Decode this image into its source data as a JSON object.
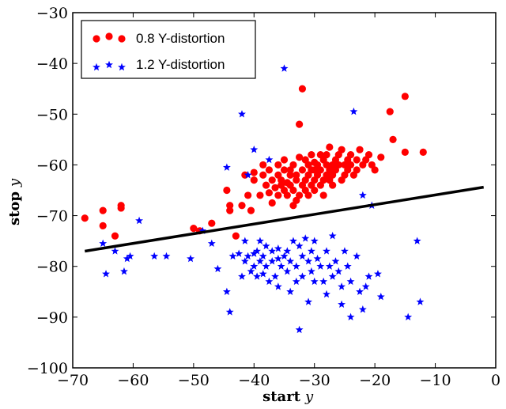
{
  "chart_data": {
    "type": "scatter",
    "xlabel": "start",
    "xlabel_var": "y",
    "ylabel": "stop",
    "ylabel_var": "y",
    "xlim": [
      -70,
      0
    ],
    "ylim": [
      -100,
      -30
    ],
    "xticks": [
      -70,
      -60,
      -50,
      -40,
      -30,
      -20,
      -10,
      0
    ],
    "yticks": [
      -100,
      -90,
      -80,
      -70,
      -60,
      -50,
      -40,
      -30
    ],
    "xtick_labels": [
      "−70",
      "−60",
      "−50",
      "−40",
      "−30",
      "−20",
      "−10",
      "0"
    ],
    "ytick_labels": [
      "−100",
      "−90",
      "−80",
      "−70",
      "−60",
      "−50",
      "−40",
      "−30"
    ],
    "grid": false,
    "legend_position": "top-left",
    "series": [
      {
        "name": "0.8 Y-distortion",
        "marker": "circle",
        "color": "#ff0000",
        "points": [
          [
            -68,
            -70.5
          ],
          [
            -65,
            -72
          ],
          [
            -65,
            -69
          ],
          [
            -63,
            -74
          ],
          [
            -62,
            -68.5
          ],
          [
            -62,
            -68
          ],
          [
            -50,
            -72.5
          ],
          [
            -49,
            -73
          ],
          [
            -47,
            -71.5
          ],
          [
            -44.5,
            -65
          ],
          [
            -44,
            -69
          ],
          [
            -44,
            -68
          ],
          [
            -43,
            -74
          ],
          [
            -42,
            -68
          ],
          [
            -41.5,
            -62
          ],
          [
            -41,
            -66
          ],
          [
            -40.5,
            -69
          ],
          [
            -40,
            -63
          ],
          [
            -40,
            -61.5
          ],
          [
            -39,
            -66
          ],
          [
            -38.5,
            -60
          ],
          [
            -38.5,
            -62
          ],
          [
            -38,
            -64
          ],
          [
            -37.5,
            -65.5
          ],
          [
            -37.5,
            -61
          ],
          [
            -37,
            -67.5
          ],
          [
            -37,
            -63
          ],
          [
            -36.5,
            -64.5
          ],
          [
            -36,
            -66
          ],
          [
            -36,
            -62
          ],
          [
            -36,
            -60
          ],
          [
            -35.5,
            -64
          ],
          [
            -35.5,
            -63
          ],
          [
            -35,
            -65
          ],
          [
            -35,
            -61
          ],
          [
            -35,
            -59
          ],
          [
            -34.5,
            -66
          ],
          [
            -34.5,
            -63.5
          ],
          [
            -34,
            -62
          ],
          [
            -34,
            -64
          ],
          [
            -34,
            -61
          ],
          [
            -33.5,
            -68
          ],
          [
            -33.5,
            -65
          ],
          [
            -33.5,
            -60
          ],
          [
            -33,
            -67
          ],
          [
            -33,
            -63
          ],
          [
            -33,
            -62
          ],
          [
            -32.5,
            -58.5
          ],
          [
            -32.5,
            -52
          ],
          [
            -32.5,
            -66
          ],
          [
            -32,
            -45
          ],
          [
            -32,
            -64
          ],
          [
            -32,
            -61
          ],
          [
            -31.5,
            -65
          ],
          [
            -31.5,
            -59
          ],
          [
            -31.5,
            -63
          ],
          [
            -31,
            -60
          ],
          [
            -31,
            -62
          ],
          [
            -31,
            -66
          ],
          [
            -30.5,
            -64
          ],
          [
            -30.5,
            -61
          ],
          [
            -30.5,
            -58
          ],
          [
            -30,
            -63
          ],
          [
            -30,
            -59.5
          ],
          [
            -30,
            -65
          ],
          [
            -30,
            -61
          ],
          [
            -29.5,
            -60
          ],
          [
            -29.5,
            -62
          ],
          [
            -29,
            -58
          ],
          [
            -29,
            -64
          ],
          [
            -29,
            -61
          ],
          [
            -28.5,
            -63
          ],
          [
            -28.5,
            -59
          ],
          [
            -28.5,
            -66
          ],
          [
            -28,
            -60
          ],
          [
            -28,
            -62
          ],
          [
            -28,
            -58
          ],
          [
            -27.5,
            -61
          ],
          [
            -27.5,
            -63
          ],
          [
            -27.5,
            -56.5
          ],
          [
            -27,
            -60
          ],
          [
            -27,
            -62
          ],
          [
            -27,
            -64
          ],
          [
            -26.5,
            -59
          ],
          [
            -26.5,
            -61
          ],
          [
            -26,
            -60
          ],
          [
            -26,
            -58
          ],
          [
            -25.5,
            -63
          ],
          [
            -25.5,
            -57
          ],
          [
            -25,
            -60
          ],
          [
            -25,
            -62
          ],
          [
            -24.5,
            -59
          ],
          [
            -24.5,
            -61
          ],
          [
            -24,
            -58
          ],
          [
            -24,
            -60
          ],
          [
            -23.5,
            -62
          ],
          [
            -23,
            -59
          ],
          [
            -23,
            -61
          ],
          [
            -22.5,
            -57
          ],
          [
            -22,
            -60
          ],
          [
            -21.5,
            -59
          ],
          [
            -21,
            -58
          ],
          [
            -20.5,
            -60
          ],
          [
            -20,
            -61
          ],
          [
            -19,
            -58.5
          ],
          [
            -17.5,
            -49.5
          ],
          [
            -17,
            -55
          ],
          [
            -15,
            -46.5
          ],
          [
            -15,
            -57.5
          ],
          [
            -12,
            -57.5
          ]
        ]
      },
      {
        "name": "1.2 Y-distortion",
        "marker": "star",
        "color": "#0000ff",
        "points": [
          [
            -65,
            -75.5
          ],
          [
            -64.5,
            -81.5
          ],
          [
            -63,
            -77
          ],
          [
            -61.5,
            -81
          ],
          [
            -61,
            -78.5
          ],
          [
            -60.5,
            -78
          ],
          [
            -59,
            -71
          ],
          [
            -56.5,
            -78
          ],
          [
            -54.5,
            -78
          ],
          [
            -50.5,
            -78.5
          ],
          [
            -48.5,
            -73
          ],
          [
            -47,
            -75.5
          ],
          [
            -46,
            -80.5
          ],
          [
            -44.5,
            -85
          ],
          [
            -44.5,
            -60.5
          ],
          [
            -44,
            -89
          ],
          [
            -43.5,
            -78
          ],
          [
            -42.5,
            -77.5
          ],
          [
            -42,
            -50
          ],
          [
            -42,
            -82
          ],
          [
            -41.5,
            -79
          ],
          [
            -41.5,
            -75
          ],
          [
            -41,
            -78
          ],
          [
            -41,
            -62
          ],
          [
            -40.5,
            -81
          ],
          [
            -40,
            -57
          ],
          [
            -40,
            -80
          ],
          [
            -40,
            -77.5
          ],
          [
            -39.5,
            -82
          ],
          [
            -39.5,
            -77
          ],
          [
            -39,
            -79
          ],
          [
            -39,
            -75
          ],
          [
            -38.5,
            -81.5
          ],
          [
            -38.5,
            -78
          ],
          [
            -38,
            -76
          ],
          [
            -38,
            -80
          ],
          [
            -37.5,
            -83
          ],
          [
            -37.5,
            -59
          ],
          [
            -37,
            -79
          ],
          [
            -37,
            -77
          ],
          [
            -36.5,
            -82
          ],
          [
            -36,
            -78.5
          ],
          [
            -36,
            -76.5
          ],
          [
            -36,
            -84
          ],
          [
            -35.5,
            -80
          ],
          [
            -35,
            -78
          ],
          [
            -35,
            -41
          ],
          [
            -34.5,
            -77
          ],
          [
            -34.5,
            -81
          ],
          [
            -34,
            -85
          ],
          [
            -34,
            -79
          ],
          [
            -33.5,
            -75
          ],
          [
            -33,
            -83
          ],
          [
            -33,
            -80
          ],
          [
            -32.5,
            -76
          ],
          [
            -32.5,
            -92.5
          ],
          [
            -32,
            -78
          ],
          [
            -32,
            -82
          ],
          [
            -31.5,
            -74.5
          ],
          [
            -31,
            -79
          ],
          [
            -31,
            -87
          ],
          [
            -30.5,
            -81
          ],
          [
            -30.5,
            -77
          ],
          [
            -30,
            -83
          ],
          [
            -30,
            -75
          ],
          [
            -29.5,
            -78.5
          ],
          [
            -29,
            -80
          ],
          [
            -28.5,
            -83
          ],
          [
            -28,
            -77
          ],
          [
            -28,
            -85.5
          ],
          [
            -27.5,
            -80
          ],
          [
            -27,
            -82
          ],
          [
            -27,
            -74
          ],
          [
            -26.5,
            -79
          ],
          [
            -26,
            -81
          ],
          [
            -25.5,
            -84
          ],
          [
            -25.5,
            -87.5
          ],
          [
            -25,
            -77
          ],
          [
            -24.5,
            -80
          ],
          [
            -24,
            -83
          ],
          [
            -24,
            -90
          ],
          [
            -23.5,
            -49.5
          ],
          [
            -23,
            -78
          ],
          [
            -22.5,
            -85
          ],
          [
            -22,
            -88.5
          ],
          [
            -22,
            -66
          ],
          [
            -21.5,
            -84
          ],
          [
            -21,
            -82
          ],
          [
            -20.5,
            -68
          ],
          [
            -19.5,
            -81.5
          ],
          [
            -19,
            -86
          ],
          [
            -14.5,
            -90
          ],
          [
            -13,
            -75
          ],
          [
            -12.5,
            -87
          ]
        ]
      },
      {
        "name": "",
        "type": "line",
        "color": "#000000",
        "x": [
          -68,
          -2
        ],
        "y": [
          -77,
          -64.4
        ]
      }
    ]
  }
}
